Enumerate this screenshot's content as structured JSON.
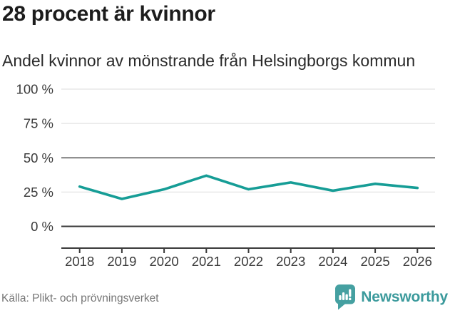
{
  "chart_data": {
    "type": "line",
    "title": "28 procent är kvinnor",
    "subtitle": "Andel kvinnor av mönstrande från Helsingborgs kommun",
    "source": "Källa: Plikt- och prövningsverket",
    "x": [
      "2018",
      "2019",
      "2020",
      "2021",
      "2022",
      "2023",
      "2024",
      "2025",
      "2026"
    ],
    "series": [
      {
        "name": "andel-kvinnor",
        "values": [
          29,
          20,
          27,
          37,
          27,
          32,
          26,
          31,
          28
        ]
      }
    ],
    "ylim": [
      0,
      100
    ],
    "yticks": [
      0,
      25,
      50,
      75,
      100
    ],
    "ytick_suffix": " %",
    "xlabel": "",
    "ylabel": "",
    "grid": true,
    "reference_line_y": 50,
    "legend": "none",
    "line_color": "#169d96"
  },
  "colors": {
    "accent": "#169d96",
    "grid": "#e3e3e3",
    "reference": "#7d7d7d",
    "axis": "#3a3a3a",
    "title_text": "#1c1c1c",
    "muted_text": "#757575",
    "brand_teal": "#45a0a1"
  },
  "brand": {
    "name": "Newsworthy"
  }
}
